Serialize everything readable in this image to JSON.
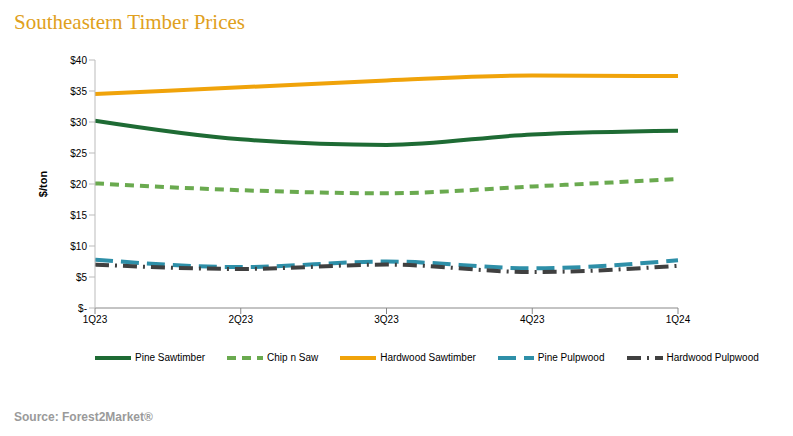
{
  "chart_data": {
    "type": "line",
    "title": "Southeastern Timber Prices",
    "source": "Source: Forest2Market®",
    "y_label": "$/ton",
    "categories": [
      "1Q23",
      "2Q23",
      "3Q23",
      "4Q23",
      "1Q24"
    ],
    "ylim": [
      0,
      40
    ],
    "yticks": [
      {
        "value": 0,
        "label": "$-"
      },
      {
        "value": 5,
        "label": "$5"
      },
      {
        "value": 10,
        "label": "$10"
      },
      {
        "value": 15,
        "label": "$15"
      },
      {
        "value": 20,
        "label": "$20"
      },
      {
        "value": 25,
        "label": "$25"
      },
      {
        "value": 30,
        "label": "$30"
      },
      {
        "value": 35,
        "label": "$35"
      },
      {
        "value": 40,
        "label": "$40"
      }
    ],
    "grid": false,
    "legend": "bottom",
    "series": [
      {
        "name": "Pine Sawtimber",
        "color": "#1e6b34",
        "line_style": "solid",
        "values": [
          30.2,
          27.2,
          26.3,
          28.0,
          28.6
        ]
      },
      {
        "name": "Chip n Saw",
        "color": "#6aaa4f",
        "line_style": "dashed",
        "values": [
          20.1,
          19.0,
          18.5,
          19.6,
          20.8
        ]
      },
      {
        "name": "Hardwood Sawtimber",
        "color": "#f0a30a",
        "line_style": "solid",
        "values": [
          34.5,
          35.6,
          36.7,
          37.5,
          37.4
        ]
      },
      {
        "name": "Pine Pulpwood",
        "color": "#2e8fa8",
        "line_style": "long_dash",
        "values": [
          7.8,
          6.6,
          7.5,
          6.4,
          7.7
        ]
      },
      {
        "name": "Hardwood Pulpwood",
        "color": "#404040",
        "line_style": "dash_dot",
        "values": [
          7.0,
          6.3,
          7.0,
          5.8,
          6.8
        ]
      }
    ]
  }
}
